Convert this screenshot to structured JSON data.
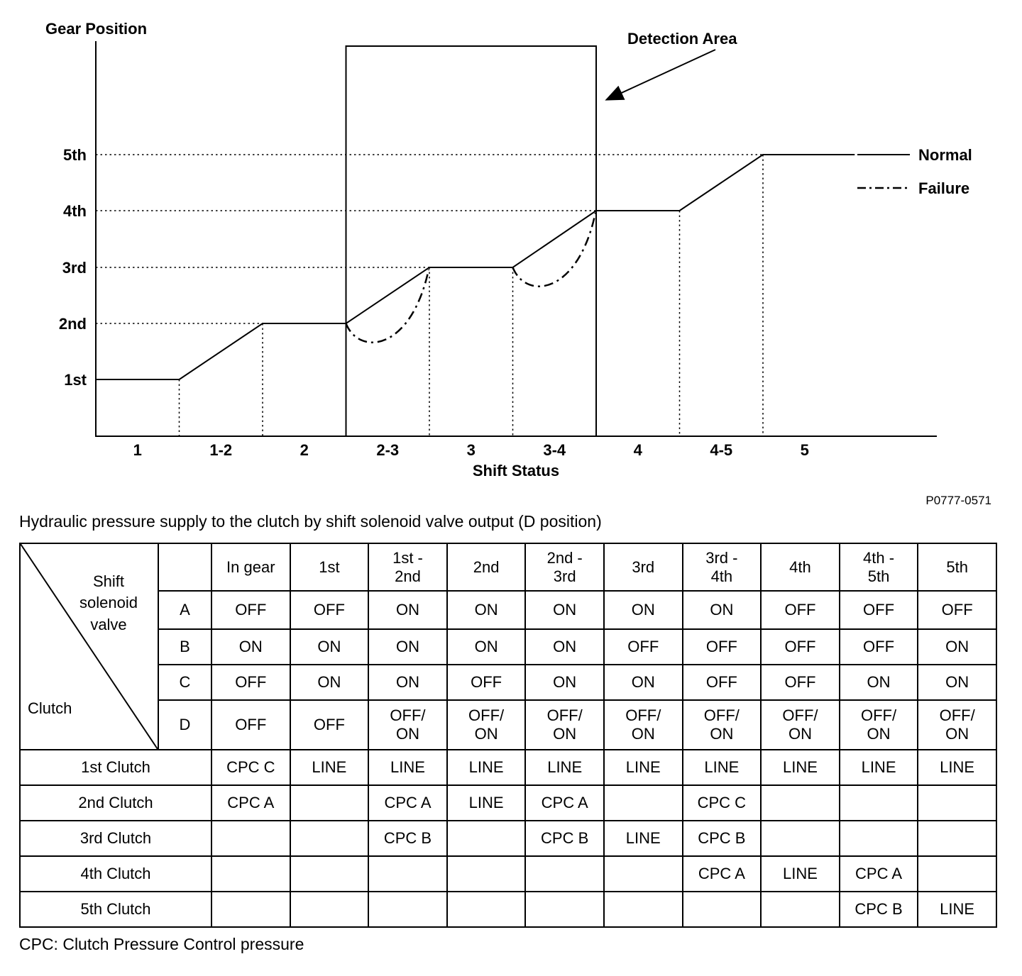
{
  "caption": "Hydraulic pressure supply to the clutch by shift solenoid valve output (D position)",
  "footnote": "CPC: Clutch Pressure Control pressure",
  "chart_data": [
    {
      "type": "line",
      "title": "",
      "xlabel": "Shift Status",
      "ylabel": "Gear Position",
      "x_tick_labels": [
        "1",
        "1-2",
        "2",
        "2-3",
        "3",
        "3-4",
        "4",
        "4-5",
        "5"
      ],
      "y_tick_labels": [
        "1st",
        "2nd",
        "3rd",
        "4th",
        "5th"
      ],
      "figure_code": "P0777-0571",
      "detection_area": {
        "label": "Detection Area",
        "x_bands": [
          "2-3",
          "3",
          "3-4"
        ]
      },
      "legend": [
        {
          "label": "Normal",
          "line_style": "solid"
        },
        {
          "label": "Failure",
          "line_style": "dash-dot"
        }
      ],
      "series": [
        {
          "name": "Normal",
          "line_style": "solid",
          "points_band_gear": [
            [
              0,
              1
            ],
            [
              1,
              1
            ],
            [
              2,
              2
            ],
            [
              3,
              2
            ],
            [
              4,
              3
            ],
            [
              5,
              3
            ],
            [
              6,
              4
            ],
            [
              7,
              4
            ],
            [
              8,
              5
            ],
            [
              9.1,
              5
            ]
          ]
        },
        {
          "name": "Failure",
          "line_style": "dash-dot",
          "dips": [
            {
              "band": "2-3",
              "from_gear": 2,
              "to_gear": 3
            },
            {
              "band": "3-4",
              "from_gear": 3,
              "to_gear": 4
            }
          ]
        }
      ]
    },
    {
      "type": "table",
      "corner_top_label": "Shift\nsolenoid\nvalve",
      "corner_bottom_label": "Clutch",
      "column_headers": [
        "In gear",
        "1st",
        "1st -\n2nd",
        "2nd",
        "2nd -\n3rd",
        "3rd",
        "3rd -\n4th",
        "4th",
        "4th -\n5th",
        "5th"
      ],
      "solenoid_rows": [
        {
          "label": "A",
          "values": [
            "OFF",
            "OFF",
            "ON",
            "ON",
            "ON",
            "ON",
            "ON",
            "OFF",
            "OFF",
            "OFF"
          ]
        },
        {
          "label": "B",
          "values": [
            "ON",
            "ON",
            "ON",
            "ON",
            "ON",
            "OFF",
            "OFF",
            "OFF",
            "OFF",
            "ON"
          ]
        },
        {
          "label": "C",
          "values": [
            "OFF",
            "ON",
            "ON",
            "OFF",
            "ON",
            "ON",
            "OFF",
            "OFF",
            "ON",
            "ON"
          ]
        },
        {
          "label": "D",
          "values": [
            "OFF",
            "OFF",
            "OFF/\nON",
            "OFF/\nON",
            "OFF/\nON",
            "OFF/\nON",
            "OFF/\nON",
            "OFF/\nON",
            "OFF/\nON",
            "OFF/\nON"
          ]
        }
      ],
      "clutch_rows": [
        {
          "label": "1st Clutch",
          "values": [
            "CPC C",
            "LINE",
            "LINE",
            "LINE",
            "LINE",
            "LINE",
            "LINE",
            "LINE",
            "LINE",
            "LINE"
          ]
        },
        {
          "label": "2nd Clutch",
          "values": [
            "CPC A",
            "",
            "CPC A",
            "LINE",
            "CPC A",
            "",
            "CPC C",
            "",
            "",
            ""
          ]
        },
        {
          "label": "3rd Clutch",
          "values": [
            "",
            "",
            "CPC B",
            "",
            "CPC B",
            "LINE",
            "CPC B",
            "",
            "",
            ""
          ]
        },
        {
          "label": "4th Clutch",
          "values": [
            "",
            "",
            "",
            "",
            "",
            "",
            "CPC A",
            "LINE",
            "CPC A",
            ""
          ]
        },
        {
          "label": "5th Clutch",
          "values": [
            "",
            "",
            "",
            "",
            "",
            "",
            "",
            "",
            "CPC B",
            "LINE"
          ]
        }
      ]
    }
  ]
}
